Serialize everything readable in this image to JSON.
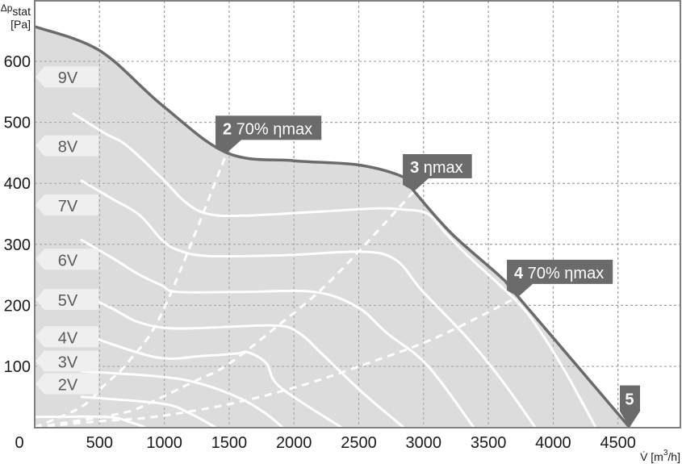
{
  "chart_data": {
    "type": "line",
    "ylabel_main": "Δp",
    "ylabel_sub": "stat",
    "ylabel_unit": "[Pa]",
    "xlabel_symbol": "V̇",
    "xlabel_unit_pre": "[m",
    "xlabel_unit_sup": "3",
    "xlabel_unit_post": "/h]",
    "xlim": [
      0,
      4980
    ],
    "ylim": [
      0,
      700
    ],
    "x_ticks": [
      "0",
      "500",
      "1000",
      "1500",
      "2000",
      "2500",
      "3000",
      "3500",
      "4000",
      "4500"
    ],
    "y_ticks": [
      "100",
      "200",
      "300",
      "400",
      "500",
      "600"
    ],
    "grid": true,
    "colors": {
      "fill": "#dcdcdc",
      "envelope": "#6b6b6b",
      "speed": "#ffffff",
      "callout": "#6b6b6b",
      "label_bg": "#efefef",
      "grid": "#9a9a9a"
    },
    "envelope": [
      [
        0,
        657
      ],
      [
        498,
        618
      ],
      [
        978,
        529
      ],
      [
        1482,
        450
      ],
      [
        1999,
        437
      ],
      [
        2503,
        430
      ],
      [
        2846,
        410
      ],
      [
        2927,
        387
      ],
      [
        3219,
        317
      ],
      [
        3593,
        247
      ],
      [
        3730,
        214
      ],
      [
        4589,
        0
      ]
    ],
    "series": [
      {
        "name": "9V",
        "points": [
          [
            293,
            515
          ],
          [
            542,
            482
          ],
          [
            710,
            462
          ],
          [
            978,
            409
          ],
          [
            1164,
            369
          ],
          [
            1333,
            350
          ],
          [
            1600,
            347
          ],
          [
            2223,
            354
          ],
          [
            2640,
            359
          ],
          [
            2846,
            357
          ],
          [
            3032,
            350
          ],
          [
            3176,
            317
          ],
          [
            3344,
            281
          ],
          [
            3717,
            207
          ],
          [
            3885,
            162
          ],
          [
            4091,
            92
          ],
          [
            4328,
            0
          ]
        ]
      },
      {
        "name": "8V",
        "points": [
          [
            355,
            405
          ],
          [
            604,
            374
          ],
          [
            809,
            348
          ],
          [
            978,
            308
          ],
          [
            1102,
            291
          ],
          [
            1333,
            281
          ],
          [
            1912,
            282
          ],
          [
            2516,
            288
          ],
          [
            2783,
            275
          ],
          [
            2989,
            224
          ],
          [
            3344,
            145
          ],
          [
            3611,
            75
          ],
          [
            3861,
            0
          ]
        ]
      },
      {
        "name": "7V",
        "points": [
          [
            355,
            308
          ],
          [
            604,
            277
          ],
          [
            809,
            250
          ],
          [
            978,
            233
          ],
          [
            1102,
            222
          ],
          [
            1600,
            222
          ],
          [
            2161,
            222
          ],
          [
            2491,
            197
          ],
          [
            2721,
            154
          ],
          [
            3032,
            101
          ],
          [
            3387,
            0
          ]
        ]
      },
      {
        "name": "6V",
        "points": [
          [
            355,
            220
          ],
          [
            604,
            194
          ],
          [
            809,
            172
          ],
          [
            1102,
            162
          ],
          [
            1831,
            167
          ],
          [
            2036,
            155
          ],
          [
            2223,
            119
          ],
          [
            2534,
            56
          ],
          [
            2846,
            0
          ]
        ]
      },
      {
        "name": "5V",
        "points": [
          [
            355,
            154
          ],
          [
            934,
            115
          ],
          [
            1289,
            117
          ],
          [
            1557,
            121
          ],
          [
            1644,
            123
          ],
          [
            1787,
            105
          ],
          [
            1893,
            66
          ],
          [
            2366,
            0
          ]
        ]
      },
      {
        "name": "4V",
        "points": [
          [
            355,
            92
          ],
          [
            978,
            83
          ],
          [
            1289,
            71
          ],
          [
            1600,
            46
          ],
          [
            1787,
            22
          ],
          [
            1912,
            0
          ]
        ]
      },
      {
        "name": "3V",
        "points": [
          [
            355,
            50
          ],
          [
            978,
            39
          ],
          [
            1196,
            23
          ],
          [
            1395,
            0
          ]
        ]
      },
      {
        "name": "2V",
        "points": [
          [
            0,
            17
          ],
          [
            560,
            17
          ],
          [
            729,
            9
          ],
          [
            853,
            0
          ]
        ]
      }
    ],
    "efficiency_lines": [
      {
        "id": "2",
        "points": [
          [
            0,
            0
          ],
          [
            355,
            33
          ],
          [
            542,
            70
          ],
          [
            729,
            109
          ],
          [
            996,
            194
          ],
          [
            1482,
            450
          ]
        ]
      },
      {
        "id": "3",
        "points": [
          [
            0,
            0
          ],
          [
            666,
            23
          ],
          [
            915,
            43
          ],
          [
            1227,
            75
          ],
          [
            1476,
            101
          ],
          [
            1849,
            162
          ],
          [
            2285,
            241
          ],
          [
            2927,
            387
          ]
        ]
      },
      {
        "id": "4",
        "points": [
          [
            0,
            0
          ],
          [
            498,
            10
          ],
          [
            915,
            17
          ],
          [
            1476,
            37
          ],
          [
            2017,
            66
          ],
          [
            2516,
            101
          ],
          [
            3095,
            147
          ],
          [
            3730,
            214
          ]
        ]
      }
    ],
    "speed_labels": [
      {
        "text": "9V",
        "y": 560
      },
      {
        "text": "8V",
        "y": 447
      },
      {
        "text": "7V",
        "y": 350
      },
      {
        "text": "6V",
        "y": 261
      },
      {
        "text": "5V",
        "y": 195
      },
      {
        "text": "4V",
        "y": 134
      },
      {
        "text": "3V",
        "y": 94
      },
      {
        "text": "2V",
        "y": 57
      }
    ],
    "callouts": [
      {
        "num": "2",
        "text": "70% ηmax",
        "at": [
          1482,
          450
        ]
      },
      {
        "num": "3",
        "text": "ηmax",
        "at": [
          2927,
          387
        ]
      },
      {
        "num": "4",
        "text": "70% ηmax",
        "at": [
          3730,
          214
        ]
      },
      {
        "num": "5",
        "text": "",
        "at": [
          4589,
          0
        ]
      }
    ]
  }
}
